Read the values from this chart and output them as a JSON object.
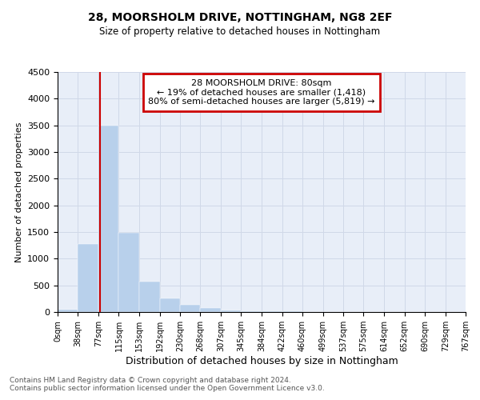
{
  "title_line1": "28, MOORSHOLM DRIVE, NOTTINGHAM, NG8 2EF",
  "title_line2": "Size of property relative to detached houses in Nottingham",
  "xlabel": "Distribution of detached houses by size in Nottingham",
  "ylabel": "Number of detached properties",
  "footer_line1": "Contains HM Land Registry data © Crown copyright and database right 2024.",
  "footer_line2": "Contains public sector information licensed under the Open Government Licence v3.0.",
  "annotation_line1": "28 MOORSHOLM DRIVE: 80sqm",
  "annotation_line2": "← 19% of detached houses are smaller (1,418)",
  "annotation_line3": "80% of semi-detached houses are larger (5,819) →",
  "bar_edges": [
    0,
    38,
    77,
    115,
    153,
    192,
    230,
    268,
    307,
    345,
    384,
    422,
    460,
    499,
    537,
    575,
    614,
    652,
    691,
    729,
    767
  ],
  "bar_values": [
    50,
    1270,
    3500,
    1480,
    575,
    250,
    140,
    80,
    35,
    20,
    12,
    8,
    5,
    3,
    2,
    1,
    1,
    0,
    0,
    0
  ],
  "bar_color": "#b8d0eb",
  "property_line_x": 80,
  "ylim": [
    0,
    4500
  ],
  "xlim": [
    0,
    767
  ],
  "annotation_box_color": "#cc0000",
  "property_line_color": "#cc0000",
  "grid_color": "#d0d8e8",
  "background_color": "#e8eef8"
}
